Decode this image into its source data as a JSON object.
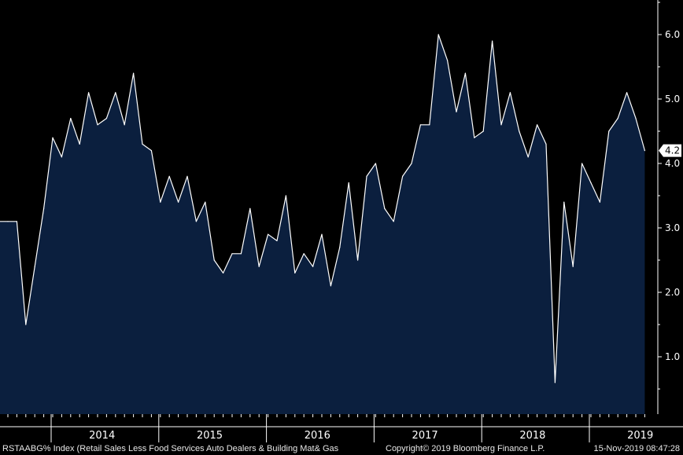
{
  "chart_data": {
    "type": "area",
    "title": "",
    "xlabel": "",
    "ylabel": "",
    "ylim": [
      0,
      6.5
    ],
    "yticks": [
      "1.0",
      "2.0",
      "3.0",
      "4.0",
      "5.0",
      "6.0"
    ],
    "year_labels": [
      "2014",
      "2015",
      "2016",
      "2017",
      "2018",
      "2019"
    ],
    "x_start": "2013-08",
    "last_value_label": "4.2",
    "fill_color": "#0b1f3e",
    "line_color": "#ffffff",
    "series": [
      {
        "values": [
          3.1,
          3.1,
          1.5,
          2.4,
          3.3,
          4.4,
          4.1,
          4.7,
          4.3,
          5.1,
          4.6,
          4.7,
          5.1,
          4.6,
          5.4,
          4.3,
          4.2,
          3.4,
          3.8,
          3.4,
          3.8,
          3.1,
          3.4,
          2.5,
          2.3,
          2.6,
          2.6,
          3.3,
          2.4,
          2.9,
          2.8,
          3.5,
          2.3,
          2.6,
          2.4,
          2.9,
          2.1,
          2.7,
          3.7,
          2.5,
          3.8,
          4.0,
          3.3,
          3.1,
          3.8,
          4.0,
          4.6,
          4.6,
          6.0,
          5.6,
          4.8,
          5.4,
          4.4,
          4.5,
          5.9,
          4.6,
          5.1,
          4.5,
          4.1,
          4.6,
          4.3,
          0.6,
          3.4,
          2.4,
          4.0,
          3.7,
          3.4,
          4.5,
          4.7,
          5.1,
          4.7,
          4.2
        ]
      }
    ]
  },
  "footer": {
    "ticker_description": "RSTAABG% Index (Retail Sales Less Food Services Auto Dealers & Building Mat& Gas",
    "copyright": "Copyright© 2019 Bloomberg Finance L.P.",
    "timestamp": "15-Nov-2019 08:47:28"
  }
}
